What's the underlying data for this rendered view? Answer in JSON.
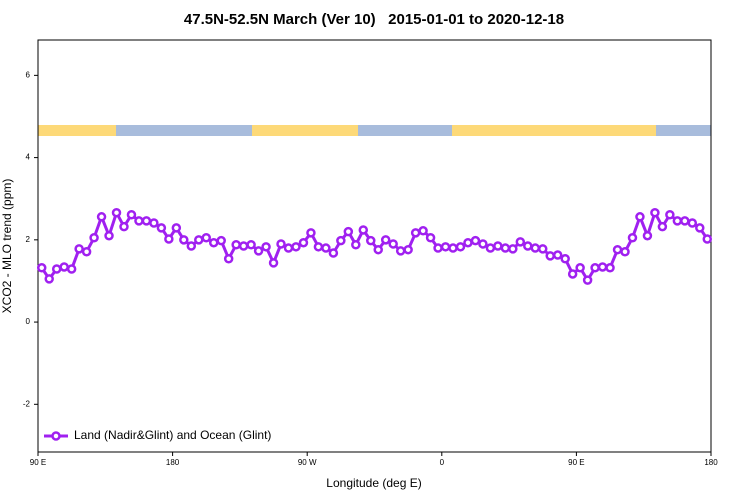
{
  "chart_data": {
    "type": "line",
    "title": "47.5N-52.5N March (Ver 10)   2015-01-01 to 2020-12-18",
    "xlabel": "Longitude (deg E)",
    "ylabel": "XCO2 - MLO trend (ppm)",
    "x": [
      92.5,
      97.5,
      102.5,
      107.5,
      112.5,
      117.5,
      122.5,
      127.5,
      132.5,
      137.5,
      142.5,
      147.5,
      152.5,
      157.5,
      162.5,
      167.5,
      172.5,
      177.5,
      182.5,
      187.5,
      192.5,
      197.5,
      202.5,
      207.5,
      212.5,
      217.5,
      222.5,
      227.5,
      232.5,
      237.5,
      242.5,
      247.5,
      252.5,
      257.5,
      262.5,
      267.5,
      272.5,
      277.5,
      282.5,
      287.5,
      292.5,
      297.5,
      302.5,
      307.5,
      312.5,
      317.5,
      322.5,
      327.5,
      332.5,
      337.5,
      342.5,
      347.5,
      352.5,
      357.5,
      362.5,
      367.5,
      372.5,
      377.5,
      382.5,
      387.5,
      392.5,
      397.5,
      402.5,
      407.5,
      412.5,
      417.5,
      422.5,
      427.5,
      432.5,
      437.5,
      442.5,
      447.5,
      452.5,
      457.5,
      462.5,
      467.5,
      472.5,
      477.5,
      482.5,
      487.5,
      492.5,
      497.5,
      502.5,
      507.5,
      512.5,
      517.5,
      522.5,
      527.5,
      532.5,
      537.5
    ],
    "series": [
      {
        "name": "Land (Nadir&Glint) and Ocean (Glint)",
        "color": "#a020f0",
        "values": [
          1.32,
          1.05,
          1.29,
          1.34,
          1.29,
          1.78,
          1.71,
          2.05,
          2.56,
          2.1,
          2.66,
          2.32,
          2.61,
          2.46,
          2.46,
          2.41,
          2.29,
          2.02,
          2.29,
          2.0,
          1.85,
          2.0,
          2.05,
          1.93,
          1.98,
          1.54,
          1.88,
          1.85,
          1.88,
          1.73,
          1.83,
          1.44,
          1.9,
          1.8,
          1.83,
          1.93,
          2.17,
          1.83,
          1.8,
          1.68,
          1.98,
          2.2,
          1.88,
          2.24,
          1.98,
          1.76,
          2.0,
          1.9,
          1.73,
          1.76,
          2.17,
          2.22,
          2.05,
          1.8,
          1.83,
          1.8,
          1.83,
          1.93,
          1.98,
          1.9,
          1.8,
          1.85,
          1.8,
          1.78,
          1.95,
          1.85,
          1.8,
          1.78,
          1.61,
          1.63,
          1.54,
          1.17,
          1.32,
          1.02,
          1.32,
          1.34,
          1.32,
          1.76,
          1.71,
          2.05,
          2.56,
          2.1,
          2.66,
          2.32,
          2.61,
          2.46,
          2.46,
          2.41,
          2.29,
          2.02
        ]
      }
    ],
    "xlim": [
      90,
      540
    ],
    "xticks": [
      {
        "value": 90,
        "label": "90 E"
      },
      180,
      {
        "value": 270,
        "label": "90 W"
      },
      {
        "value": 360,
        "label": "0"
      },
      {
        "value": 450,
        "label": "90 E"
      },
      180.0001
    ],
    "ylim": [
      -3.16,
      6.86
    ],
    "yticks": [
      -2,
      0,
      2,
      4,
      6
    ],
    "legend": "bottom-left"
  }
}
